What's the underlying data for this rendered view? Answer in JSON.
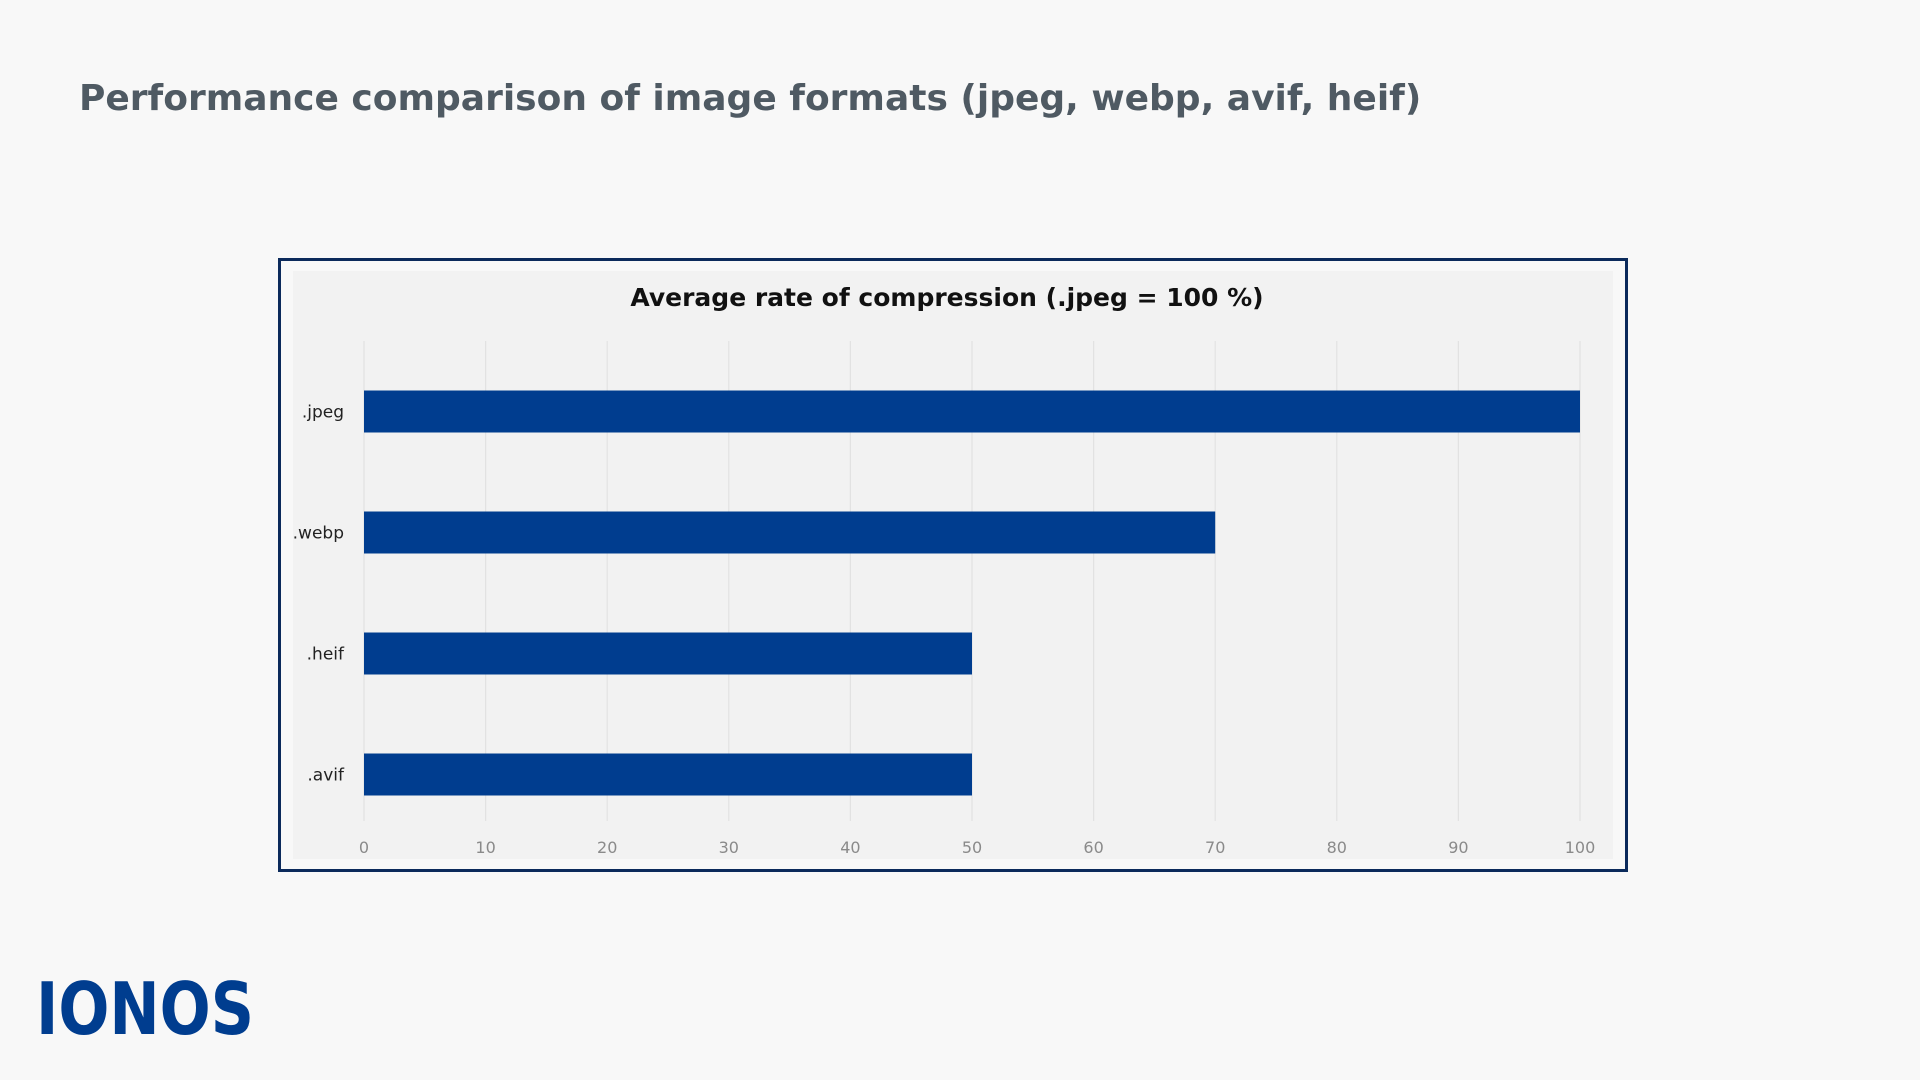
{
  "page": {
    "heading": "Performance comparison of image formats (jpeg, webp, avif, heif)",
    "logo_text": "IONOS"
  },
  "colors": {
    "background": "#f8f8f8",
    "plot_background": "#f2f2f2",
    "bar": "#003d8f",
    "frame": "#0b2a5b",
    "heading": "#4f5a63",
    "grid": "#e2e2e2",
    "tick_label": "#8a8a8a"
  },
  "chart_data": {
    "type": "bar",
    "orientation": "horizontal",
    "title": "Average rate of compression (.jpeg = 100 %)",
    "categories": [
      ".jpeg",
      ".webp",
      ".heif",
      ".avif"
    ],
    "values": [
      100,
      70,
      50,
      50
    ],
    "xlabel": "",
    "ylabel": "",
    "xlim": [
      0,
      100
    ],
    "x_ticks": [
      0,
      10,
      20,
      30,
      40,
      50,
      60,
      70,
      80,
      90,
      100
    ],
    "grid": "vertical",
    "legend": "none"
  }
}
